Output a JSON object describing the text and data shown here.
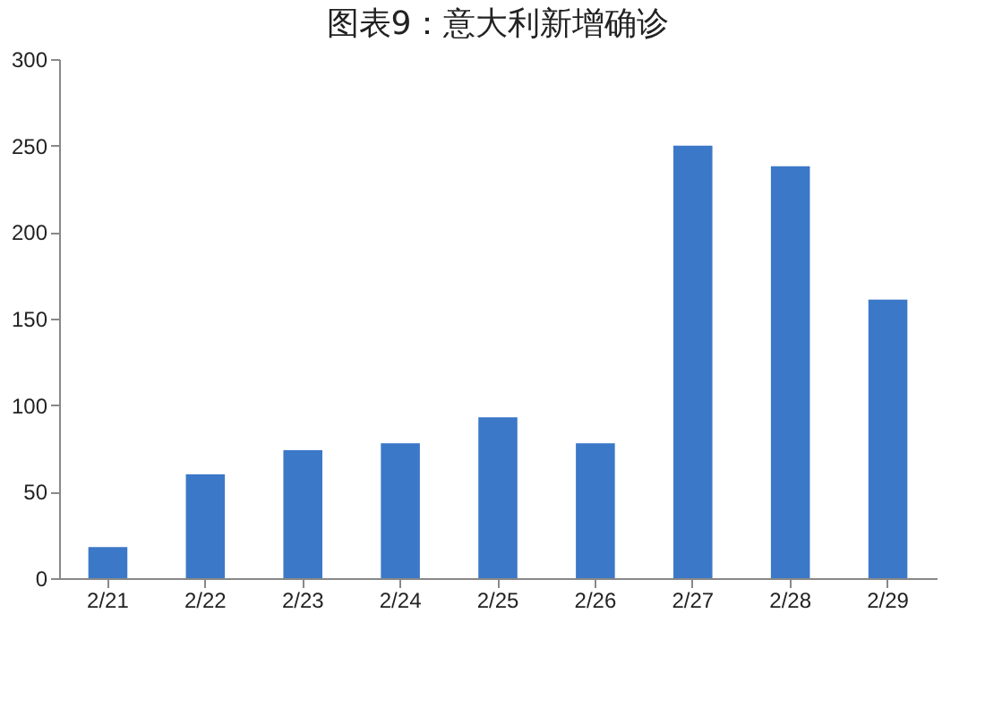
{
  "chart_data": {
    "type": "bar",
    "title": "图表9：意大利新增确诊",
    "categories": [
      "2/21",
      "2/22",
      "2/23",
      "2/24",
      "2/25",
      "2/26",
      "2/27",
      "2/28",
      "2/29"
    ],
    "values": [
      18,
      60,
      74,
      78,
      93,
      78,
      250,
      238,
      161
    ],
    "color": "#3c78c8",
    "ylim": [
      0,
      300
    ],
    "yticks": [
      0,
      50,
      100,
      150,
      200,
      250,
      300
    ],
    "grid": false
  }
}
